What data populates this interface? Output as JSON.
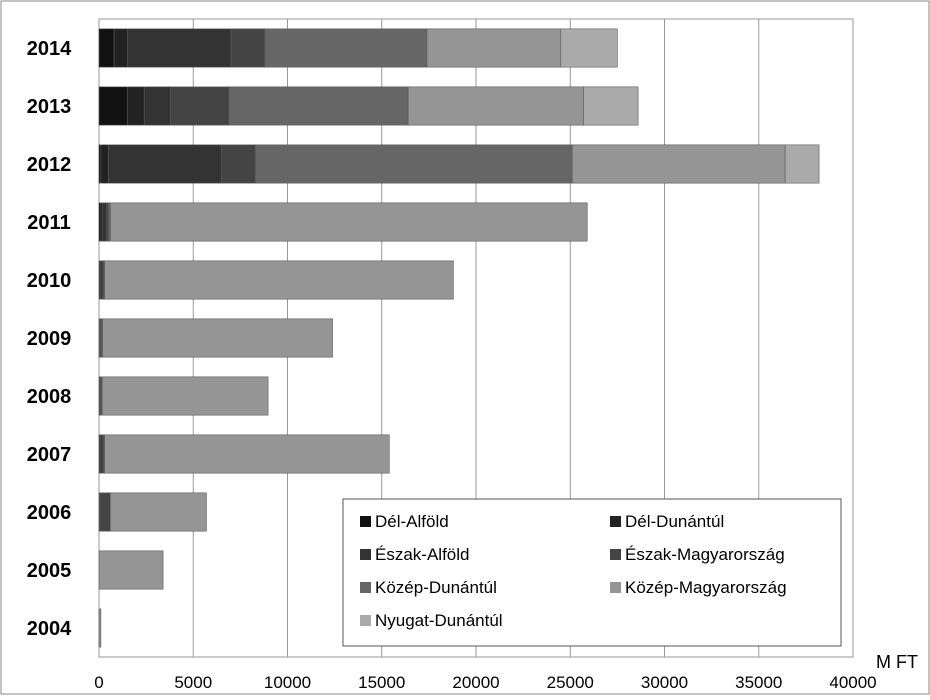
{
  "chart_data": {
    "type": "bar",
    "orientation": "horizontal",
    "stacked": true,
    "categories": [
      "2014",
      "2013",
      "2012",
      "2011",
      "2010",
      "2009",
      "2008",
      "2007",
      "2006",
      "2005",
      "2004"
    ],
    "series": [
      {
        "name": "Dél-Alföld",
        "color": "#111111",
        "values": [
          800,
          1500,
          100,
          100,
          50,
          30,
          30,
          50,
          0,
          0,
          0
        ]
      },
      {
        "name": "Dél-Dunántúl",
        "color": "#222222",
        "values": [
          700,
          900,
          400,
          100,
          50,
          30,
          30,
          50,
          0,
          0,
          0
        ]
      },
      {
        "name": "Észak-Alföld",
        "color": "#333333",
        "values": [
          5500,
          1400,
          6000,
          200,
          100,
          50,
          50,
          100,
          50,
          0,
          0
        ]
      },
      {
        "name": "Észak-Magyarország",
        "color": "#444444",
        "values": [
          1800,
          3100,
          1800,
          100,
          50,
          30,
          30,
          50,
          550,
          0,
          0
        ]
      },
      {
        "name": "Közép-Dunántúl",
        "color": "#666666",
        "values": [
          8600,
          9500,
          16800,
          100,
          50,
          50,
          30,
          50,
          0,
          0,
          0
        ]
      },
      {
        "name": "Közép-Magyarország",
        "color": "#959595",
        "values": [
          7100,
          9300,
          11300,
          25300,
          18500,
          12200,
          8800,
          15100,
          5100,
          3400,
          100
        ]
      },
      {
        "name": "Nyugat-Dunántúl",
        "color": "#aaaaaa",
        "values": [
          3000,
          2900,
          1800,
          0,
          0,
          0,
          0,
          0,
          0,
          0,
          0
        ]
      }
    ],
    "xticks": [
      "0",
      "5000",
      "10000",
      "15000",
      "20000",
      "25000",
      "30000",
      "35000",
      "40000"
    ],
    "xlim": [
      0,
      40000
    ],
    "xlabel": "M FT",
    "ylabel": "",
    "title": "",
    "grid": "vertical",
    "legend_position": "bottom-right inside"
  }
}
